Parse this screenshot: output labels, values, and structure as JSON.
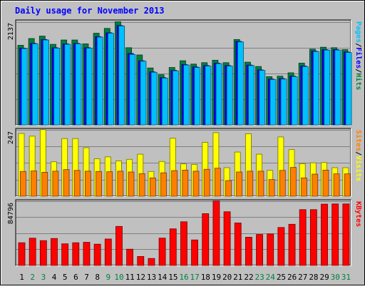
{
  "chart_data": [
    {
      "type": "bar",
      "panel": "hits-files-pages",
      "title": "Daily usage for November 2013",
      "ytick": "2137",
      "right_labels": [
        {
          "text": "Pages",
          "color": "#00c0ff"
        },
        {
          "text": "Files",
          "color": "#0000ff"
        },
        {
          "text": "Hits",
          "color": "#008040"
        }
      ],
      "categories": [
        "1",
        "2",
        "3",
        "4",
        "5",
        "6",
        "7",
        "8",
        "9",
        "10",
        "11",
        "12",
        "13",
        "14",
        "15",
        "16",
        "17",
        "18",
        "19",
        "20",
        "21",
        "22",
        "23",
        "24",
        "25",
        "26",
        "27",
        "28",
        "29",
        "30",
        "31"
      ],
      "weekend_days": [
        "2",
        "3",
        "9",
        "10",
        "16",
        "17",
        "23",
        "24",
        "30",
        "31"
      ],
      "series": [
        {
          "name": "Hits",
          "color": "#008040",
          "values": [
            1650,
            1790,
            1840,
            1670,
            1760,
            1760,
            1680,
            1900,
            2000,
            2137,
            1600,
            1450,
            1180,
            1040,
            1190,
            1330,
            1260,
            1290,
            1340,
            1290,
            1770,
            1300,
            1210,
            1000,
            1010,
            1080,
            1280,
            1570,
            1610,
            1600,
            1560
          ]
        },
        {
          "name": "Files",
          "color": "#0000ff",
          "values": [
            1590,
            1690,
            1770,
            1600,
            1680,
            1690,
            1600,
            1830,
            1910,
            2060,
            1480,
            1330,
            1100,
            980,
            1130,
            1250,
            1200,
            1230,
            1280,
            1230,
            1730,
            1240,
            1140,
            950,
            960,
            1010,
            1220,
            1530,
            1560,
            1560,
            1510
          ]
        },
        {
          "name": "Pages",
          "color": "#00c0ff",
          "values": [
            1580,
            1680,
            1760,
            1590,
            1670,
            1680,
            1590,
            1820,
            1900,
            2050,
            1460,
            1320,
            1090,
            970,
            1120,
            1240,
            1190,
            1220,
            1270,
            1220,
            1720,
            1230,
            1130,
            940,
            950,
            1000,
            1210,
            1520,
            1550,
            1550,
            1500
          ]
        }
      ]
    },
    {
      "type": "bar",
      "panel": "visits-sites",
      "ytick": "247",
      "right_labels": [
        {
          "text": "Sites",
          "color": "#ff8000"
        },
        {
          "text": "Visits",
          "color": "#ffff00"
        }
      ],
      "series": [
        {
          "name": "Visits",
          "color": "#ffff00",
          "values": [
            233,
            223,
            247,
            128,
            214,
            214,
            180,
            139,
            146,
            131,
            137,
            156,
            92,
            129,
            215,
            120,
            118,
            200,
            236,
            106,
            164,
            232,
            156,
            96,
            220,
            173,
            121,
            124,
            125,
            106,
            106
          ]
        },
        {
          "name": "Sites",
          "color": "#ff8000",
          "values": [
            92,
            94,
            89,
            93,
            99,
            96,
            93,
            92,
            91,
            93,
            90,
            84,
            68,
            87,
            95,
            97,
            93,
            100,
            104,
            58,
            90,
            93,
            93,
            62,
            96,
            107,
            68,
            82,
            97,
            83,
            83
          ]
        }
      ]
    },
    {
      "type": "bar",
      "panel": "kbytes",
      "ytick": "84796",
      "right_labels": [
        {
          "text": "KBytes",
          "color": "#ff0000"
        }
      ],
      "series": [
        {
          "name": "KBytes",
          "color": "#ff0000",
          "values": [
            29900,
            35900,
            32700,
            35500,
            28500,
            29900,
            30500,
            28000,
            34800,
            51400,
            21400,
            11800,
            9200,
            36000,
            48200,
            57500,
            33600,
            68200,
            84796,
            70700,
            56000,
            37200,
            40800,
            41500,
            50000,
            54200,
            73500,
            73500,
            80700,
            81000,
            81000
          ]
        }
      ]
    }
  ]
}
